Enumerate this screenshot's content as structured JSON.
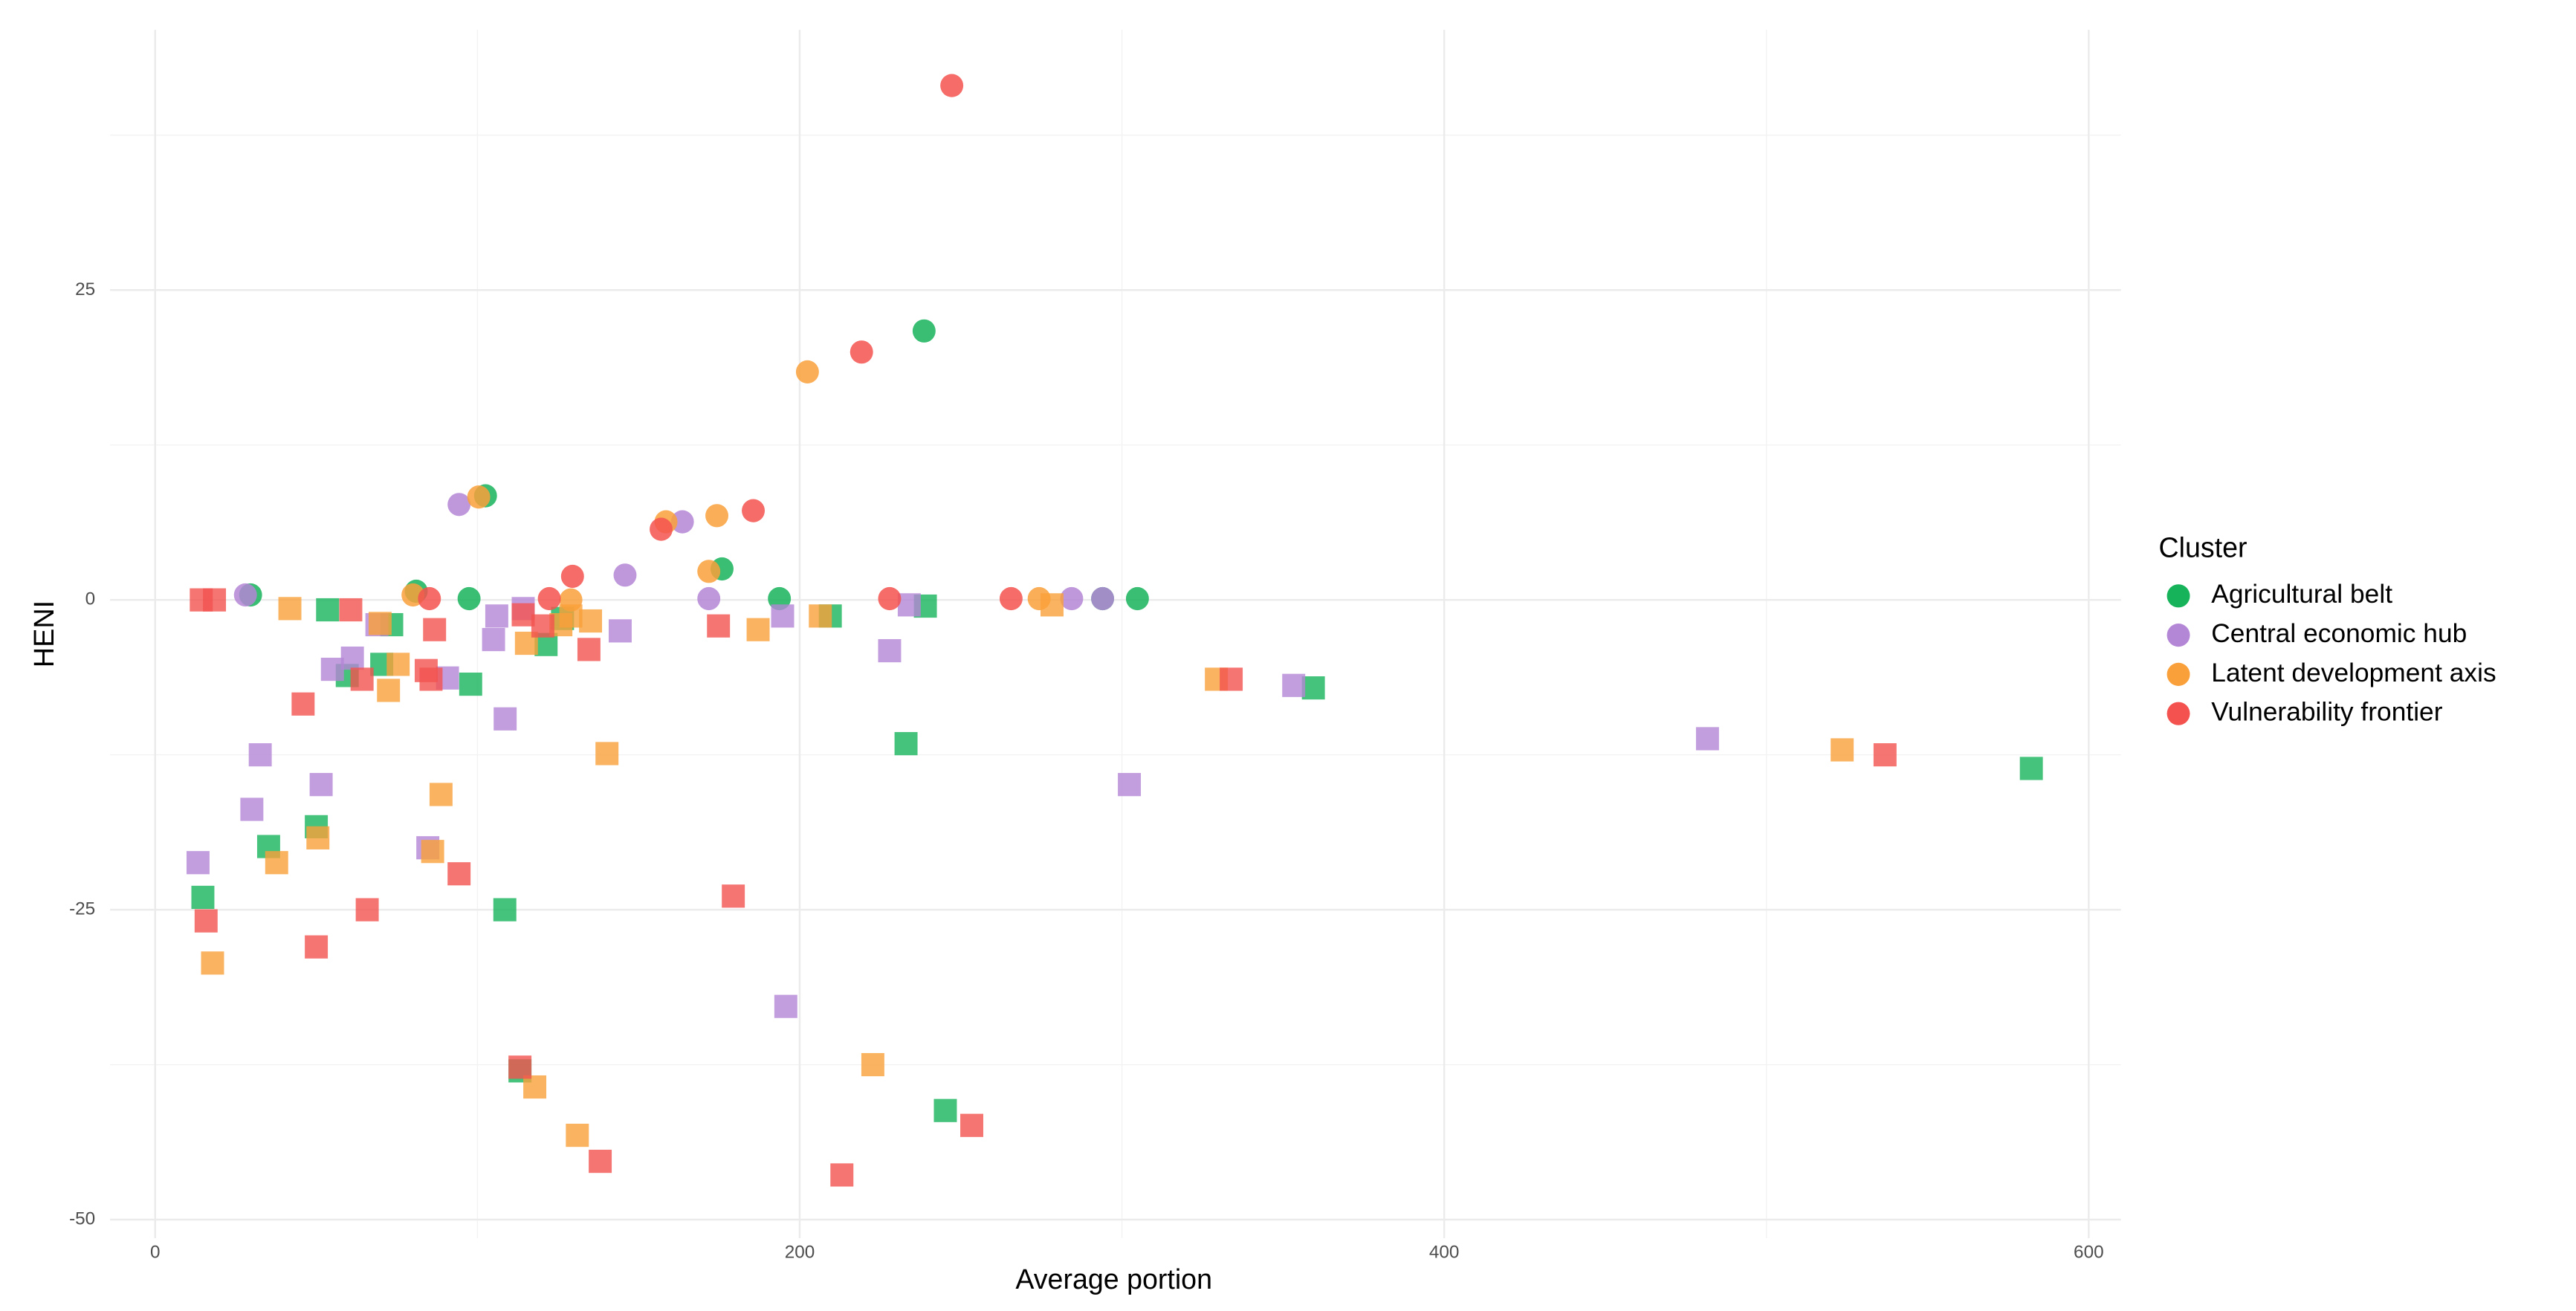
{
  "chart_data": {
    "type": "scatter",
    "x_label": "Average portion",
    "y_label": "HENI",
    "legend_title": "Cluster",
    "legend_position": "right",
    "grid": true,
    "xlim": [
      -14,
      610
    ],
    "ylim": [
      -51.5,
      46
    ],
    "xticks": [
      0,
      200,
      400,
      600
    ],
    "yticks": [
      -50,
      -25,
      0,
      25
    ],
    "xminor": [
      100,
      300,
      500
    ],
    "yminor": [
      -37.5,
      -12.5,
      12.5,
      37.5
    ],
    "series": [
      {
        "name": "Agricultural belt",
        "color": "#16b35a",
        "circles": {
          "x": [
            29.6,
            81,
            97.4,
            102.5,
            175.9,
            193.7,
            238.6,
            294,
            304.8
          ],
          "y": [
            0.4,
            0.7,
            0.1,
            8.4,
            2.5,
            0.1,
            21.7,
            0.1,
            0.1
          ]
        },
        "squares": {
          "x": [
            14.8,
            35.2,
            50,
            53.5,
            59.6,
            70.3,
            73.4,
            97.9,
            108.5,
            113.2,
            121.3,
            126.4,
            209.5,
            233,
            239,
            245.2,
            359.4,
            582.2
          ],
          "y": [
            -24,
            -19.9,
            -18.3,
            -0.8,
            -6.1,
            -5.2,
            -2,
            -6.8,
            -25,
            -38,
            -3.6,
            -1.5,
            -1.3,
            -11.6,
            -0.5,
            -41.2,
            -7.1,
            -13.6
          ]
        }
      },
      {
        "name": "Central economic hub",
        "color": "#b486d6",
        "circles": {
          "x": [
            28,
            94.3,
            145.8,
            163.6,
            171.8,
            284.4,
            294
          ],
          "y": [
            0.4,
            7.7,
            2,
            6.3,
            0.1,
            0.1,
            0.1
          ]
        },
        "squares": {
          "x": [
            13.3,
            30,
            32.6,
            51.5,
            55,
            61.2,
            68.8,
            84.6,
            90.7,
            106,
            105,
            108.6,
            114.2,
            144.3,
            194.7,
            195.7,
            227.9,
            234,
            302.3,
            353.3,
            481.7
          ],
          "y": [
            -21.2,
            -16.9,
            -12.5,
            -14.9,
            -5.6,
            -4.7,
            -2,
            -20,
            -6.3,
            -1.3,
            -3.2,
            -9.6,
            -0.7,
            -2.5,
            -1.3,
            -32.8,
            -4.1,
            -0.4,
            -14.9,
            -6.9,
            -11.2
          ]
        }
      },
      {
        "name": "Latent development axis",
        "color": "#f9a03a",
        "circles": {
          "x": [
            80,
            100.4,
            129,
            158.5,
            171.8,
            174.3,
            202.4,
            274.3
          ],
          "y": [
            0.4,
            8.3,
            0,
            6.3,
            2.3,
            6.8,
            18.4,
            0.1
          ]
        },
        "squares": {
          "x": [
            17.8,
            37.7,
            41.8,
            50.5,
            69.8,
            72.4,
            75.4,
            86.1,
            88.7,
            115.2,
            117.8,
            125.9,
            129,
            131,
            135.1,
            140.2,
            187.1,
            206.4,
            222.7,
            278.3,
            329.3,
            523.5
          ],
          "y": [
            -29.3,
            -21.2,
            -0.7,
            -19.2,
            -1.9,
            -7.3,
            -5.2,
            -20.3,
            -15.7,
            -3.5,
            -39.3,
            -2,
            -1.3,
            -43.2,
            -1.7,
            -12.4,
            -2.4,
            -1.3,
            -37.5,
            -0.4,
            -6.4,
            -12.1
          ]
        }
      },
      {
        "name": "Vulnerability frontier",
        "color": "#f3524f",
        "circles": {
          "x": [
            85.1,
            122.3,
            129.5,
            157,
            185.6,
            219.2,
            227.9,
            247.2,
            265.6
          ],
          "y": [
            0.1,
            0.1,
            1.9,
            5.7,
            7.2,
            20,
            0.1,
            41.5,
            0.1
          ]
        },
        "squares": {
          "x": [
            14.3,
            15.8,
            18.4,
            45.9,
            50,
            60.7,
            64.2,
            65.8,
            84.1,
            85.6,
            86.7,
            94.3,
            113.2,
            114.2,
            120.3,
            134.6,
            138.1,
            174.8,
            179.4,
            213.1,
            253.4,
            333.9,
            536.8
          ],
          "y": [
            0,
            -25.9,
            0,
            -8.4,
            -28,
            -0.8,
            -6.4,
            -25,
            -5.7,
            -6.4,
            -2.4,
            -22.1,
            -37.7,
            -1.2,
            -2.1,
            -4,
            -45.3,
            -2.1,
            -23.9,
            -46.4,
            -42.4,
            -6.4,
            -12.5
          ]
        }
      }
    ]
  }
}
